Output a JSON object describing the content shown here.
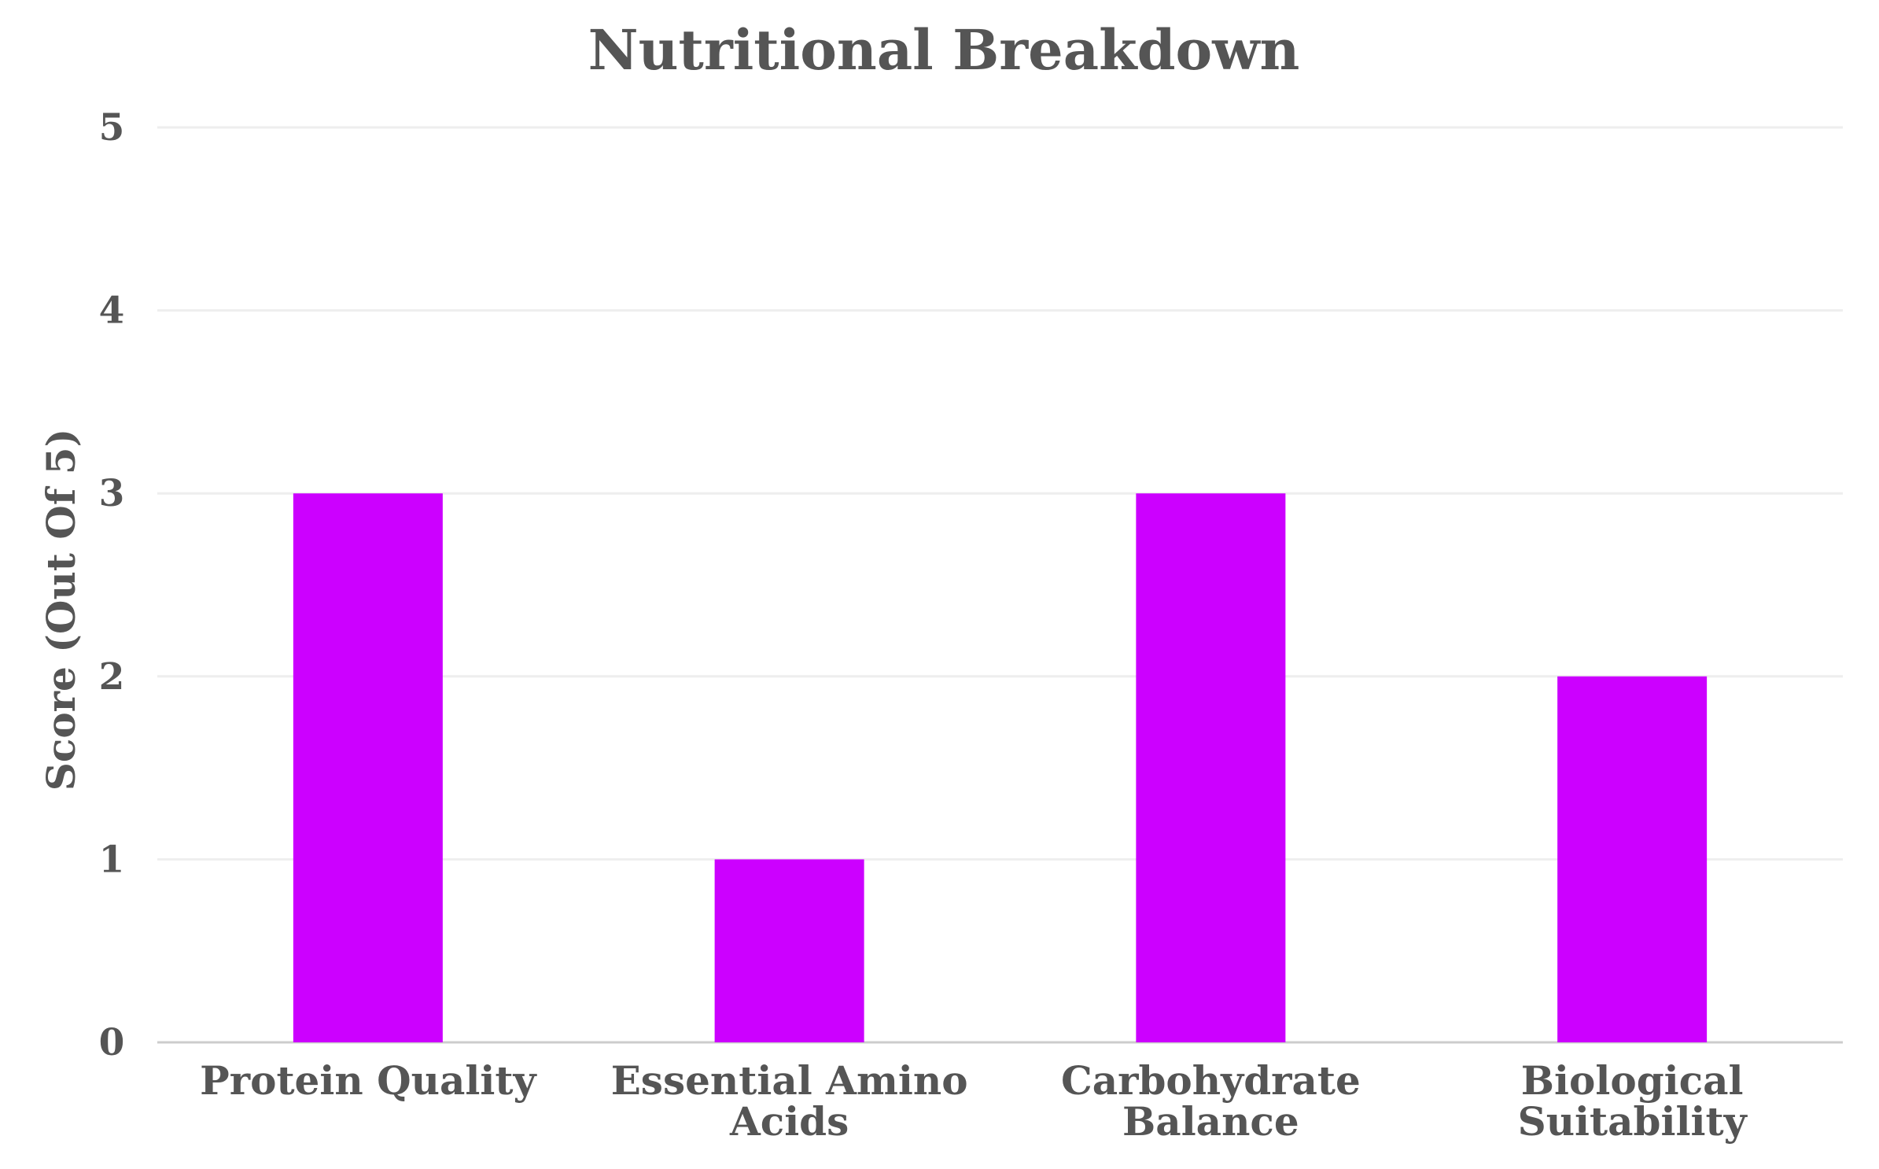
{
  "chart_data": {
    "type": "bar",
    "title": "Nutritional Breakdown",
    "xlabel": "",
    "ylabel": "Score (Out Of 5)",
    "categories": [
      [
        "Protein Quality"
      ],
      [
        "Essential Amino",
        "Acids"
      ],
      [
        "Carbohydrate",
        "Balance"
      ],
      [
        "Biological",
        "Suitability"
      ]
    ],
    "values": [
      3,
      1,
      3,
      2
    ],
    "ylim": [
      0,
      5
    ],
    "yticks": [
      0,
      1,
      2,
      3,
      4,
      5
    ],
    "grid": true,
    "legend": "none",
    "colors": {
      "bar": "#cc00ff",
      "text": "#555555",
      "grid": "#eeeeee"
    }
  }
}
